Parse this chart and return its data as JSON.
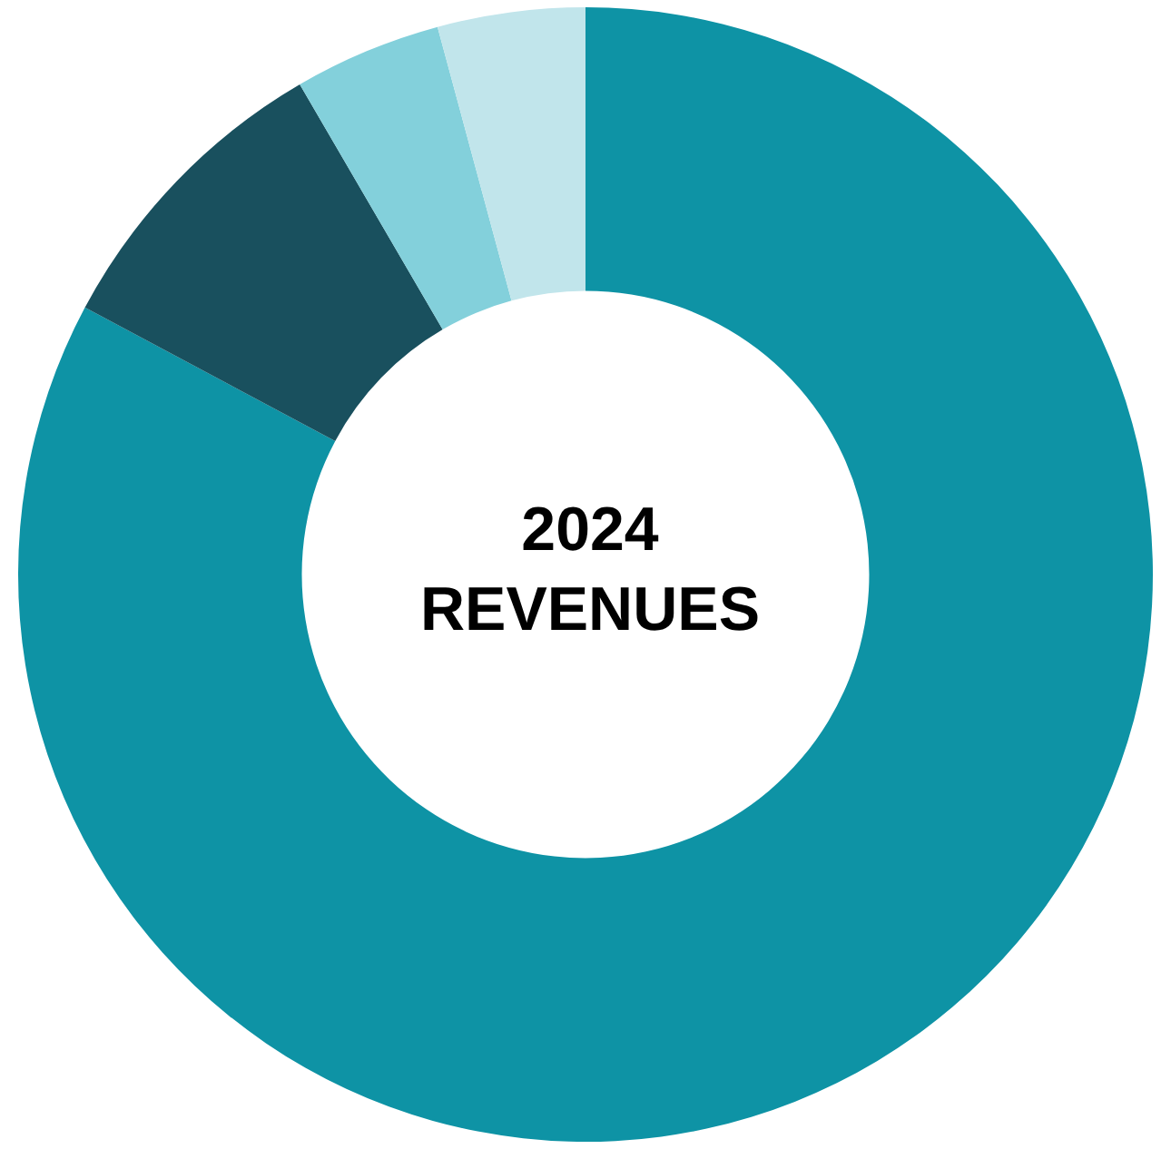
{
  "chart_data": {
    "type": "donut",
    "title": "2024 REVENUES",
    "categories": [
      null,
      null,
      null,
      null
    ],
    "values": [
      82.8,
      8.8,
      4.2,
      4.2
    ],
    "colors": [
      "#0e93a5",
      "#19505e",
      "#83d0db",
      "#c1e5eb"
    ],
    "legend": false
  }
}
